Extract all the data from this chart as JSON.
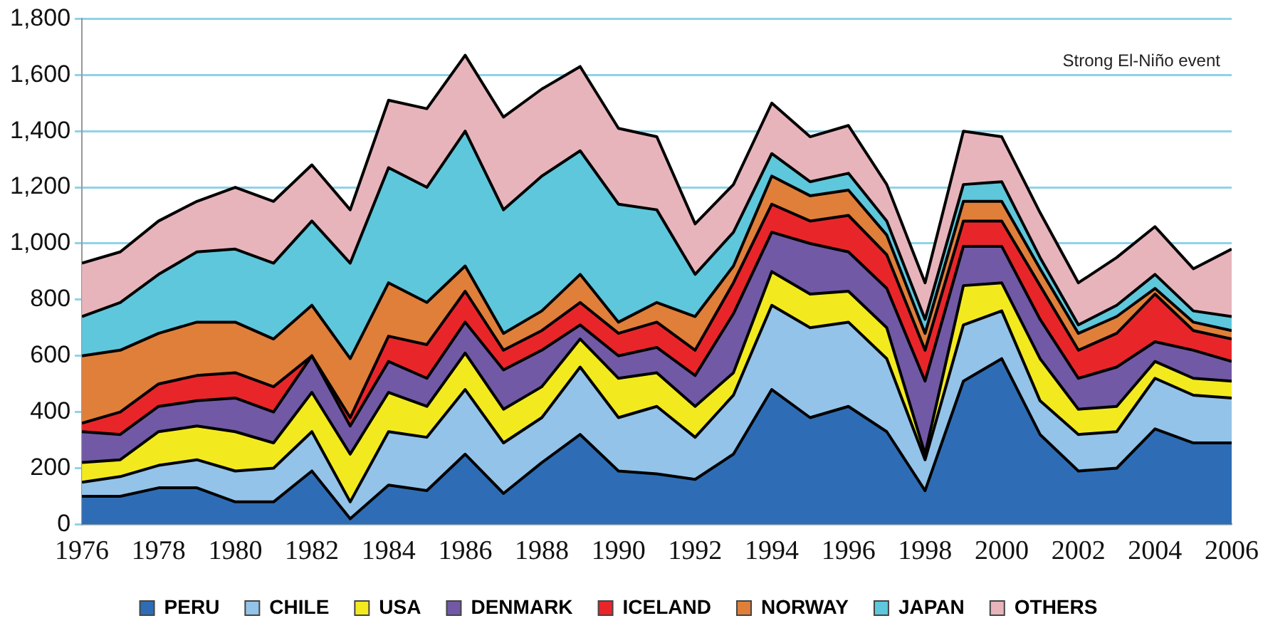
{
  "chart_data": {
    "type": "area",
    "stacked": true,
    "x": [
      1976,
      1977,
      1978,
      1979,
      1980,
      1981,
      1982,
      1983,
      1984,
      1985,
      1986,
      1987,
      1988,
      1989,
      1990,
      1991,
      1992,
      1993,
      1994,
      1995,
      1996,
      1997,
      1998,
      1999,
      2000,
      2001,
      2002,
      2003,
      2004,
      2005,
      2006
    ],
    "xlim": [
      1976,
      2006
    ],
    "xticks": [
      1976,
      1978,
      1980,
      1982,
      1984,
      1986,
      1988,
      1990,
      1992,
      1994,
      1996,
      1998,
      2000,
      2002,
      2004,
      2006
    ],
    "ylim": [
      0,
      1800
    ],
    "yticks": [
      0,
      {
        "value": 200,
        "label": "200"
      },
      {
        "value": 400,
        "label": "400"
      },
      {
        "value": 600,
        "label": "600"
      },
      {
        "value": 800,
        "label": "800"
      },
      {
        "value": 1000,
        "label": "1,000"
      },
      {
        "value": 1200,
        "label": "1,200"
      },
      {
        "value": 1400,
        "label": "1,400"
      },
      {
        "value": 1600,
        "label": "1,600"
      },
      {
        "value": 1800,
        "label": "1,800"
      }
    ],
    "grid": "y",
    "legend": "bottom",
    "annotations": [
      "Strong El-Niño event"
    ],
    "series": [
      {
        "name": "PERU",
        "color": "#2e6db5",
        "values": [
          100,
          100,
          130,
          130,
          80,
          80,
          190,
          20,
          140,
          120,
          250,
          110,
          220,
          320,
          190,
          180,
          160,
          250,
          480,
          380,
          420,
          330,
          120,
          510,
          590,
          320,
          190,
          200,
          340,
          290,
          290
        ]
      },
      {
        "name": "CHILE",
        "color": "#93c3e8",
        "values": [
          50,
          70,
          80,
          100,
          110,
          120,
          140,
          60,
          190,
          190,
          230,
          180,
          160,
          240,
          190,
          240,
          150,
          210,
          300,
          320,
          300,
          260,
          110,
          200,
          170,
          120,
          130,
          130,
          180,
          170,
          160
        ]
      },
      {
        "name": "USA",
        "color": "#f2ea1f",
        "values": [
          70,
          60,
          120,
          120,
          140,
          90,
          140,
          170,
          140,
          110,
          130,
          120,
          110,
          100,
          140,
          120,
          110,
          80,
          120,
          120,
          110,
          110,
          20,
          140,
          100,
          150,
          90,
          90,
          60,
          60,
          60
        ]
      },
      {
        "name": "DENMARK",
        "color": "#7159a6",
        "values": [
          110,
          90,
          90,
          90,
          120,
          110,
          130,
          100,
          110,
          100,
          110,
          140,
          130,
          50,
          80,
          90,
          110,
          210,
          140,
          180,
          140,
          140,
          260,
          140,
          130,
          140,
          110,
          140,
          70,
          100,
          70
        ]
      },
      {
        "name": "ICELAND",
        "color": "#e8262a",
        "values": [
          30,
          80,
          80,
          90,
          90,
          90,
          0,
          30,
          90,
          120,
          110,
          70,
          70,
          80,
          80,
          90,
          90,
          110,
          100,
          80,
          130,
          120,
          110,
          90,
          90,
          120,
          100,
          120,
          170,
          70,
          80
        ]
      },
      {
        "name": "NORWAY",
        "color": "#e07f3a",
        "values": [
          240,
          220,
          180,
          190,
          180,
          170,
          180,
          210,
          190,
          150,
          90,
          60,
          70,
          100,
          40,
          70,
          120,
          60,
          100,
          90,
          90,
          70,
          60,
          70,
          70,
          60,
          60,
          60,
          20,
          30,
          30
        ]
      },
      {
        "name": "JAPAN",
        "color": "#5ec7dc",
        "values": [
          140,
          170,
          210,
          250,
          260,
          270,
          300,
          340,
          410,
          410,
          480,
          440,
          480,
          440,
          420,
          330,
          150,
          120,
          80,
          50,
          60,
          50,
          50,
          60,
          70,
          40,
          30,
          40,
          50,
          40,
          50
        ]
      },
      {
        "name": "OTHERS",
        "color": "#e8b4bc",
        "values": [
          190,
          180,
          190,
          180,
          220,
          220,
          200,
          190,
          240,
          280,
          270,
          330,
          310,
          300,
          270,
          260,
          180,
          170,
          180,
          160,
          170,
          130,
          130,
          190,
          160,
          160,
          150,
          170,
          170,
          150,
          240
        ]
      }
    ]
  }
}
